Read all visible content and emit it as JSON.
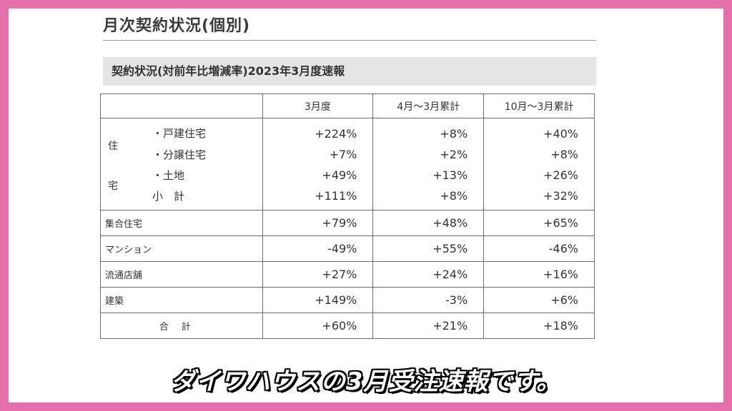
{
  "page_title": "月次契約状況(個別)",
  "section_title": "契約状況(対前年比増減率)2023年3月度速報",
  "columns": [
    "",
    "3月度",
    "4月～3月累計",
    "10月～3月累計"
  ],
  "housing": {
    "label_top": "住",
    "label_bottom": "宅",
    "items": [
      {
        "label": "・戸建住宅",
        "values": [
          "+224%",
          "+8%",
          "+40%"
        ]
      },
      {
        "label": "・分譲住宅",
        "values": [
          "+7%",
          "+2%",
          "+8%"
        ]
      },
      {
        "label": "・土地",
        "values": [
          "+49%",
          "+13%",
          "+26%"
        ]
      },
      {
        "label": "小　計",
        "values": [
          "+111%",
          "+8%",
          "+32%"
        ]
      }
    ]
  },
  "rows": [
    {
      "label": "集合住宅",
      "values": [
        "+79%",
        "+48%",
        "+65%"
      ]
    },
    {
      "label": "マンション",
      "values": [
        "-49%",
        "+55%",
        "-46%"
      ]
    },
    {
      "label": "流通店舗",
      "values": [
        "+27%",
        "+24%",
        "+16%"
      ]
    },
    {
      "label": "建築",
      "values": [
        "+149%",
        "-3%",
        "+6%"
      ]
    }
  ],
  "total": {
    "label": "合計",
    "values": [
      "+60%",
      "+21%",
      "+18%"
    ]
  },
  "caption": "ダイワハウスの3月受注速報です。"
}
